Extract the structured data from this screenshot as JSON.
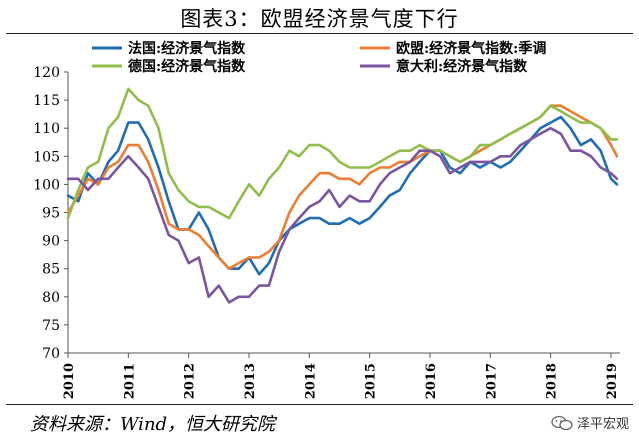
{
  "title": "图表3：欧盟经济景气度下行",
  "source": "资料来源：Wind，恒大研究院",
  "brand": "泽平宏观",
  "chart_data": {
    "type": "line",
    "title": "图表3：欧盟经济景气度下行",
    "xlabel": "",
    "ylabel": "",
    "ylim": [
      70,
      120
    ],
    "yticks": [
      "70",
      "75",
      "80",
      "85",
      "90",
      "95",
      "100",
      "105",
      "110",
      "115",
      "120"
    ],
    "xticks": [
      "2010",
      "2011",
      "2012",
      "2013",
      "2014",
      "2015",
      "2016",
      "2017",
      "2018",
      "2019"
    ],
    "xlim": [
      2010,
      2019.15
    ],
    "grid": false,
    "legend": "top",
    "series": [
      {
        "name": "法国:经济景气指数",
        "color": "#1f6db5",
        "x": [
          2010,
          2010.17,
          2010.33,
          2010.5,
          2010.67,
          2010.83,
          2011,
          2011.17,
          2011.33,
          2011.5,
          2011.67,
          2011.83,
          2012,
          2012.17,
          2012.33,
          2012.5,
          2012.67,
          2012.83,
          2013,
          2013.17,
          2013.33,
          2013.5,
          2013.67,
          2013.83,
          2014,
          2014.17,
          2014.33,
          2014.5,
          2014.67,
          2014.83,
          2015,
          2015.17,
          2015.33,
          2015.5,
          2015.67,
          2015.83,
          2016,
          2016.17,
          2016.33,
          2016.5,
          2016.67,
          2016.83,
          2017,
          2017.17,
          2017.33,
          2017.5,
          2017.67,
          2017.83,
          2018,
          2018.17,
          2018.33,
          2018.5,
          2018.67,
          2018.83,
          2019,
          2019.1
        ],
        "values": [
          98,
          97,
          102,
          100,
          104,
          106,
          111,
          111,
          108,
          103,
          97,
          92,
          92,
          95,
          92,
          87,
          85,
          85,
          87,
          84,
          86,
          90,
          92,
          93,
          94,
          94,
          93,
          93,
          94,
          93,
          94,
          96,
          98,
          99,
          102,
          104,
          106,
          106,
          103,
          102,
          104,
          103,
          104,
          103,
          104,
          106,
          108,
          110,
          111,
          112,
          110,
          107,
          108,
          106,
          101,
          100
        ]
      },
      {
        "name": "欧盟:经济景气指数:季调",
        "color": "#ee7d31",
        "x": [
          2010,
          2010.17,
          2010.33,
          2010.5,
          2010.67,
          2010.83,
          2011,
          2011.17,
          2011.33,
          2011.5,
          2011.67,
          2011.83,
          2012,
          2012.17,
          2012.33,
          2012.5,
          2012.67,
          2012.83,
          2013,
          2013.17,
          2013.33,
          2013.5,
          2013.67,
          2013.83,
          2014,
          2014.17,
          2014.33,
          2014.5,
          2014.67,
          2014.83,
          2015,
          2015.17,
          2015.33,
          2015.5,
          2015.67,
          2015.83,
          2016,
          2016.17,
          2016.33,
          2016.5,
          2016.67,
          2016.83,
          2017,
          2017.17,
          2017.33,
          2017.5,
          2017.67,
          2017.83,
          2018,
          2018.17,
          2018.33,
          2018.5,
          2018.67,
          2018.83,
          2019,
          2019.1
        ],
        "values": [
          95,
          98,
          101,
          100,
          103,
          104,
          107,
          107,
          104,
          99,
          93,
          92,
          92,
          91,
          89,
          87,
          85,
          86,
          87,
          87,
          88,
          90,
          95,
          98,
          100,
          102,
          102,
          101,
          101,
          100,
          102,
          103,
          103,
          104,
          104,
          105,
          106,
          106,
          105,
          104,
          105,
          106,
          107,
          108,
          109,
          110,
          111,
          112,
          114,
          114,
          113,
          112,
          111,
          110,
          107,
          105
        ]
      },
      {
        "name": "德国:经济景气指数",
        "color": "#8fbf4a",
        "x": [
          2010,
          2010.17,
          2010.33,
          2010.5,
          2010.67,
          2010.83,
          2011,
          2011.17,
          2011.33,
          2011.5,
          2011.67,
          2011.83,
          2012,
          2012.17,
          2012.33,
          2012.5,
          2012.67,
          2012.83,
          2013,
          2013.17,
          2013.33,
          2013.5,
          2013.67,
          2013.83,
          2014,
          2014.17,
          2014.33,
          2014.5,
          2014.67,
          2014.83,
          2015,
          2015.17,
          2015.33,
          2015.5,
          2015.67,
          2015.83,
          2016,
          2016.17,
          2016.33,
          2016.5,
          2016.67,
          2016.83,
          2017,
          2017.17,
          2017.33,
          2017.5,
          2017.67,
          2017.83,
          2018,
          2018.17,
          2018.33,
          2018.5,
          2018.67,
          2018.83,
          2019,
          2019.1
        ],
        "values": [
          94,
          99,
          103,
          104,
          110,
          112,
          117,
          115,
          114,
          110,
          102,
          99,
          97,
          96,
          96,
          95,
          94,
          97,
          100,
          98,
          101,
          103,
          106,
          105,
          107,
          107,
          106,
          104,
          103,
          103,
          103,
          104,
          105,
          106,
          106,
          107,
          106,
          106,
          105,
          104,
          105,
          107,
          107,
          108,
          109,
          110,
          111,
          112,
          114,
          113,
          112,
          111,
          111,
          110,
          108,
          108
        ]
      },
      {
        "name": "意大利:经济景气指数",
        "color": "#7b55a0",
        "x": [
          2010,
          2010.17,
          2010.33,
          2010.5,
          2010.67,
          2010.83,
          2011,
          2011.17,
          2011.33,
          2011.5,
          2011.67,
          2011.83,
          2012,
          2012.17,
          2012.33,
          2012.5,
          2012.67,
          2012.83,
          2013,
          2013.17,
          2013.33,
          2013.5,
          2013.67,
          2013.83,
          2014,
          2014.17,
          2014.33,
          2014.5,
          2014.67,
          2014.83,
          2015,
          2015.17,
          2015.33,
          2015.5,
          2015.67,
          2015.83,
          2016,
          2016.17,
          2016.33,
          2016.5,
          2016.67,
          2016.83,
          2017,
          2017.17,
          2017.33,
          2017.5,
          2017.67,
          2017.83,
          2018,
          2018.17,
          2018.33,
          2018.5,
          2018.67,
          2018.83,
          2019,
          2019.1
        ],
        "values": [
          101,
          101,
          99,
          101,
          101,
          103,
          105,
          103,
          101,
          96,
          91,
          90,
          86,
          87,
          80,
          82,
          79,
          80,
          80,
          82,
          82,
          88,
          92,
          94,
          96,
          97,
          99,
          96,
          98,
          97,
          97,
          100,
          102,
          103,
          104,
          106,
          106,
          105,
          102,
          103,
          104,
          104,
          104,
          105,
          105,
          107,
          108,
          109,
          110,
          109,
          106,
          106,
          105,
          103,
          102,
          101
        ]
      }
    ]
  }
}
